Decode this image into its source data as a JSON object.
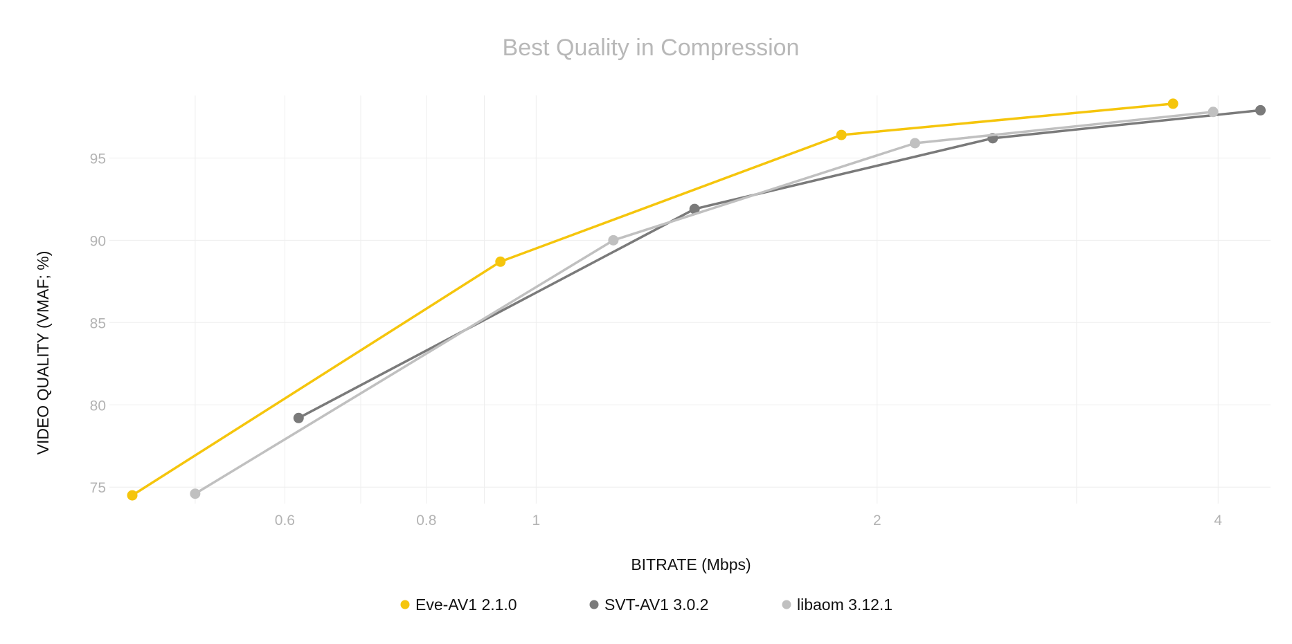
{
  "chart_data": {
    "type": "line",
    "title": "Best Quality in Compression",
    "xlabel": "BITRATE (Mbps)",
    "ylabel": "VIDEO QUALITY (VMAF; %)",
    "x_scale": "log",
    "xlim": [
      0.42,
      4.45
    ],
    "ylim": [
      74,
      98.8
    ],
    "x_ticks": [
      0.6,
      0.8,
      1,
      2,
      4
    ],
    "x_tick_labels": [
      "0.6",
      "0.8",
      "1",
      "2",
      "4"
    ],
    "y_ticks": [
      75,
      80,
      85,
      90,
      95
    ],
    "y_tick_labels": [
      "75",
      "80",
      "85",
      "90",
      "95"
    ],
    "grid": true,
    "legend_position": "bottom",
    "series": [
      {
        "name": "Eve-AV1 2.1.0",
        "color": "#f5c50c",
        "x": [
          0.44,
          0.93,
          1.86,
          3.65
        ],
        "y": [
          74.5,
          88.7,
          96.4,
          98.3
        ]
      },
      {
        "name": "SVT-AV1 3.0.2",
        "color": "#7a7a7a",
        "x": [
          0.617,
          1.38,
          2.53,
          4.36
        ],
        "y": [
          79.2,
          91.9,
          96.2,
          97.9
        ]
      },
      {
        "name": "libaom 3.12.1",
        "color": "#c0c0c0",
        "x": [
          0.5,
          1.17,
          2.16,
          3.96
        ],
        "y": [
          74.6,
          90.0,
          95.9,
          97.8
        ]
      }
    ]
  }
}
